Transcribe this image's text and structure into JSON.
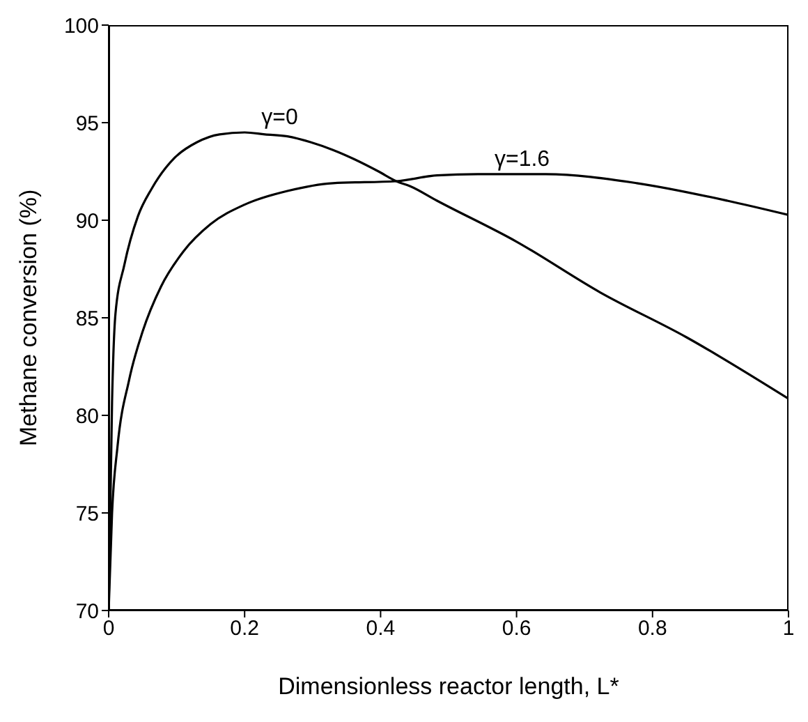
{
  "chart_data": {
    "type": "line",
    "xlabel": "Dimensionless reactor length, L*",
    "ylabel": "Methane conversion (%)",
    "xlim": [
      0,
      1
    ],
    "xticks": [
      0,
      0.2,
      0.4,
      0.6,
      0.8,
      1
    ],
    "ylim": [
      70,
      100
    ],
    "yticks": [
      70,
      75,
      80,
      85,
      90,
      95,
      100
    ],
    "marker": "none",
    "line_style": "solid",
    "series": [
      {
        "name": "γ=0",
        "color": "#000000",
        "x": [
          0,
          0.005,
          0.01,
          0.023,
          0.043,
          0.063,
          0.097,
          0.13,
          0.163,
          0.2,
          0.23,
          0.263,
          0.297,
          0.33,
          0.363,
          0.397,
          0.423,
          0.443,
          0.483,
          0.6,
          0.723,
          0.85,
          1
        ],
        "values": [
          70,
          80.7,
          85.2,
          87.7,
          90.2,
          91.6,
          93.2,
          94.0,
          94.4,
          94.5,
          94.4,
          94.3,
          94.0,
          93.6,
          93.1,
          92.5,
          92.0,
          91.75,
          91.0,
          88.9,
          86.3,
          84.0,
          80.85
        ]
      },
      {
        "name": "γ=1.6",
        "color": "#000000",
        "x": [
          0,
          0.005,
          0.013,
          0.03,
          0.05,
          0.077,
          0.11,
          0.15,
          0.2,
          0.263,
          0.33,
          0.423,
          0.483,
          0.543,
          0.643,
          0.777,
          0.91,
          1
        ],
        "values": [
          70,
          75.0,
          78.4,
          81.8,
          84.3,
          86.6,
          88.4,
          89.8,
          90.8,
          91.5,
          91.9,
          92.0,
          92.3,
          92.36,
          92.36,
          91.9,
          91.0,
          90.27
        ]
      }
    ]
  }
}
